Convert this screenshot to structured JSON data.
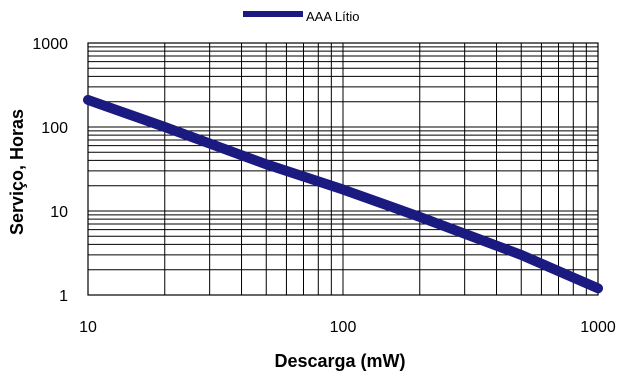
{
  "chart_data": {
    "type": "line",
    "title": "",
    "xlabel": "Descarga (mW)",
    "ylabel": "Serviço, Horas",
    "x_scale": "log",
    "y_scale": "log",
    "xlim": [
      10,
      1000
    ],
    "ylim": [
      1,
      1000
    ],
    "x_ticks": [
      10,
      100,
      1000
    ],
    "x_tick_labels": [
      "10",
      "100",
      "1000"
    ],
    "y_ticks": [
      1,
      10,
      100,
      1000
    ],
    "y_tick_labels": [
      "1",
      "10",
      "100",
      "1000"
    ],
    "grid": true,
    "legend_position": "top-center",
    "series": [
      {
        "name": "AAA Lítio",
        "color": "#1a1a80",
        "x": [
          10,
          20,
          50,
          100,
          200,
          500,
          1000
        ],
        "y": [
          210,
          100,
          36,
          18,
          8.5,
          3.0,
          1.2
        ]
      }
    ]
  }
}
